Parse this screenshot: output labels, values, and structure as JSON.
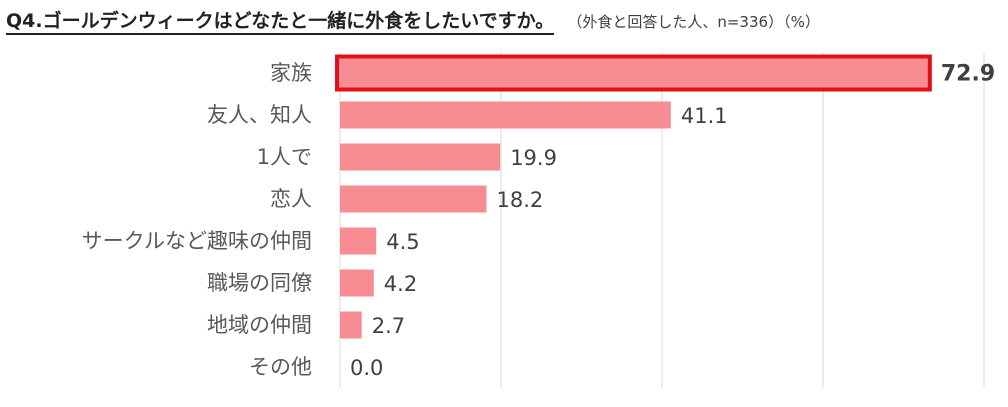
{
  "header": {
    "title": "Q4.ゴールデンウィークはどなたと一緒に外食をしたいですか。",
    "note": "（外食と回答した人、n=336）（%）"
  },
  "colors": {
    "bar": "#f78c92",
    "highlight_border": "#e0101a",
    "grid": "#d9d9d9",
    "label_text": "#595959",
    "value_text": "#404040"
  },
  "chart_data": {
    "type": "bar",
    "orientation": "horizontal",
    "categories": [
      "家族",
      "友人、知人",
      "1人で",
      "恋人",
      "サークルなど趣味の仲間",
      "職場の同僚",
      "地域の仲間",
      "その他"
    ],
    "values": [
      72.9,
      41.1,
      19.9,
      18.2,
      4.5,
      4.2,
      2.7,
      0.0
    ],
    "value_labels": [
      "72.9",
      "41.1",
      "19.9",
      "18.2",
      "4.5",
      "4.2",
      "2.7",
      "0.0"
    ],
    "highlight_index": 0,
    "xlim": [
      0,
      80
    ],
    "grid": true,
    "title": "",
    "xlabel": "",
    "ylabel": ""
  }
}
